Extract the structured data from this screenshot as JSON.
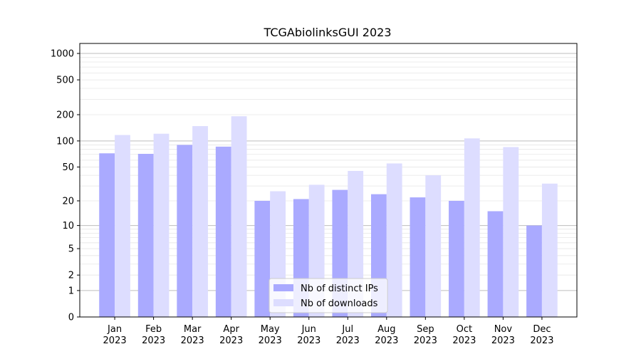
{
  "chart_data": {
    "type": "bar",
    "title": "TCGAbiolinksGUI 2023",
    "xlabel": "",
    "ylabel": "",
    "yscale": "log1p",
    "ylim": [
      0,
      1300
    ],
    "yticks": [
      0,
      1,
      2,
      5,
      10,
      20,
      50,
      100,
      200,
      500,
      1000
    ],
    "ytick_labels": [
      "0",
      "1",
      "2",
      "5",
      "10",
      "20",
      "50",
      "100",
      "200",
      "500",
      "1000"
    ],
    "major_gridlines": [
      1,
      10,
      100,
      1000
    ],
    "minor_gridlines": true,
    "categories": [
      "Jan",
      "Feb",
      "Mar",
      "Apr",
      "May",
      "Jun",
      "Jul",
      "Aug",
      "Sep",
      "Oct",
      "Nov",
      "Dec"
    ],
    "category_year": "2023",
    "series": [
      {
        "name": "Nb of distinct IPs",
        "color": "#aaaaff",
        "values": [
          72,
          71,
          90,
          86,
          20,
          21,
          27,
          24,
          22,
          20,
          15,
          10
        ]
      },
      {
        "name": "Nb of downloads",
        "color": "#ddddff",
        "values": [
          117,
          121,
          148,
          192,
          26,
          31,
          45,
          55,
          40,
          107,
          85,
          32
        ]
      }
    ],
    "legend_position": "bottom-center"
  }
}
